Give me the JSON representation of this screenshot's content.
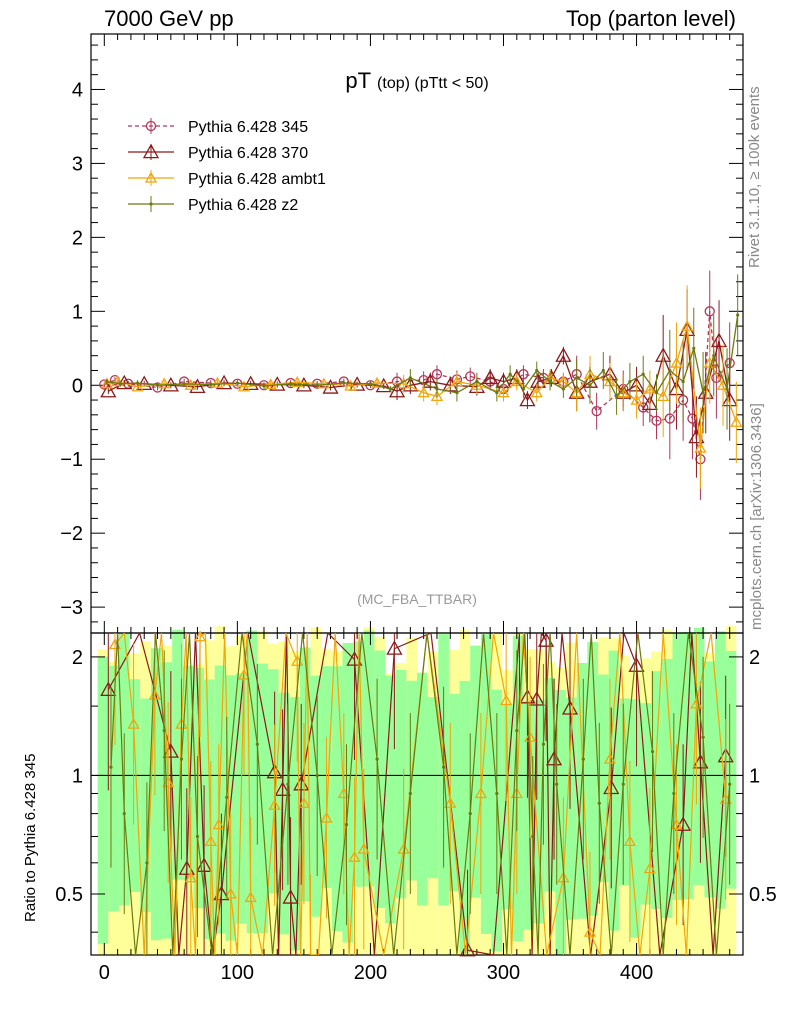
{
  "header": {
    "left": "7000 GeV pp",
    "right": "Top (parton level)"
  },
  "side_labels": {
    "rivet": "Rivet 3.1.10, ≥ 100k events",
    "mcplots": "mcplots.cern.ch [arXiv:1306.3436]"
  },
  "colors": {
    "pythia_345": "#b2365a",
    "pythia_370": "#8b1a1a",
    "pythia_ambt1": "#f2a50c",
    "pythia_z2": "#6b7a10",
    "band_outer": "#ffff99",
    "band_inner": "#99ff99"
  },
  "chart_data": [
    {
      "type": "line",
      "title": "pT (top) (pTtt < 50)",
      "title_main": "pT",
      "title_sub": "(top) (pTtt < 50)",
      "analysis": "(MC_FBA_TTBAR)",
      "xlim": [
        -10,
        480
      ],
      "ylim": [
        -3.35,
        4.75
      ],
      "x_ticks": [
        0,
        100,
        200,
        300,
        400
      ],
      "y_ticks": [
        "−3",
        "−2",
        "−1",
        "0",
        "1",
        "2",
        "3",
        "4"
      ],
      "y_tick_values": [
        -3,
        -2,
        -1,
        0,
        1,
        2,
        3,
        4
      ],
      "grid": false,
      "legend": "top-left",
      "series": [
        {
          "name": "Pythia 6.428 345",
          "color": "#b2365a",
          "marker": "circle",
          "dash": true,
          "points": [
            [
              0,
              0.01
            ],
            [
              8,
              0.07
            ],
            [
              18,
              0.02
            ],
            [
              40,
              -0.03
            ],
            [
              60,
              0.05
            ],
            [
              80,
              0.03
            ],
            [
              100,
              0.02
            ],
            [
              120,
              0.0
            ],
            [
              140,
              0.03
            ],
            [
              160,
              0.02
            ],
            [
              180,
              0.05
            ],
            [
              200,
              0.0
            ],
            [
              220,
              0.05
            ],
            [
              240,
              0.07
            ],
            [
              250,
              0.15
            ],
            [
              265,
              0.08
            ],
            [
              275,
              0.12
            ],
            [
              290,
              0.05
            ],
            [
              300,
              -0.05
            ],
            [
              315,
              0.15
            ],
            [
              330,
              0.1
            ],
            [
              345,
              0.05
            ],
            [
              355,
              0.15
            ],
            [
              370,
              -0.35
            ],
            [
              390,
              -0.05
            ],
            [
              405,
              -0.3
            ],
            [
              415,
              -0.48
            ],
            [
              425,
              -0.45
            ],
            [
              435,
              -0.2
            ],
            [
              442,
              -0.45
            ],
            [
              448,
              -1.0
            ],
            [
              455,
              1.0
            ],
            [
              460,
              0.1
            ],
            [
              470,
              0.3
            ]
          ]
        },
        {
          "name": "Pythia 6.428 370",
          "color": "#8b1a1a",
          "marker": "triangle",
          "dash": false,
          "points": [
            [
              3,
              -0.08
            ],
            [
              15,
              0.03
            ],
            [
              30,
              0.02
            ],
            [
              50,
              0.0
            ],
            [
              70,
              -0.02
            ],
            [
              90,
              0.03
            ],
            [
              110,
              0.02
            ],
            [
              130,
              0.01
            ],
            [
              150,
              0.0
            ],
            [
              170,
              -0.03
            ],
            [
              190,
              0.01
            ],
            [
              210,
              -0.01
            ],
            [
              220,
              -0.08
            ],
            [
              230,
              0.0
            ],
            [
              245,
              0.05
            ],
            [
              260,
              0.0
            ],
            [
              280,
              -0.02
            ],
            [
              290,
              0.1
            ],
            [
              300,
              0.05
            ],
            [
              310,
              0.1
            ],
            [
              318,
              -0.2
            ],
            [
              326,
              0.05
            ],
            [
              336,
              0.1
            ],
            [
              345,
              0.4
            ],
            [
              355,
              -0.1
            ],
            [
              365,
              0.05
            ],
            [
              380,
              0.15
            ],
            [
              390,
              -0.1
            ],
            [
              400,
              0.0
            ],
            [
              410,
              -0.25
            ],
            [
              420,
              0.4
            ],
            [
              430,
              -0.05
            ],
            [
              438,
              0.75
            ],
            [
              445,
              -0.7
            ],
            [
              452,
              -0.1
            ],
            [
              462,
              0.6
            ],
            [
              470,
              -0.2
            ]
          ]
        },
        {
          "name": "Pythia 6.428 ambt1",
          "color": "#f2a50c",
          "marker": "triangle",
          "dash": false,
          "points": [
            [
              2,
              0.02
            ],
            [
              10,
              0.05
            ],
            [
              25,
              -0.02
            ],
            [
              45,
              0.02
            ],
            [
              65,
              0.0
            ],
            [
              85,
              0.03
            ],
            [
              105,
              -0.02
            ],
            [
              125,
              0.01
            ],
            [
              145,
              0.04
            ],
            [
              165,
              0.02
            ],
            [
              185,
              -0.01
            ],
            [
              205,
              0.03
            ],
            [
              225,
              0.02
            ],
            [
              240,
              -0.1
            ],
            [
              250,
              -0.15
            ],
            [
              265,
              0.05
            ],
            [
              280,
              0.0
            ],
            [
              300,
              -0.1
            ],
            [
              310,
              0.05
            ],
            [
              325,
              -0.1
            ],
            [
              335,
              0.1
            ],
            [
              345,
              0.05
            ],
            [
              355,
              -0.1
            ],
            [
              365,
              0.15
            ],
            [
              380,
              0.05
            ],
            [
              390,
              -0.1
            ],
            [
              400,
              -0.2
            ],
            [
              410,
              -0.05
            ],
            [
              420,
              -0.15
            ],
            [
              430,
              0.3
            ],
            [
              438,
              0.8
            ],
            [
              448,
              -0.85
            ],
            [
              455,
              0.3
            ],
            [
              465,
              0.0
            ],
            [
              475,
              -0.5
            ]
          ]
        },
        {
          "name": "Pythia 6.428 z2",
          "color": "#6b7a10",
          "marker": "dot",
          "dash": false,
          "points": [
            [
              2,
              0.05
            ],
            [
              12,
              0.02
            ],
            [
              25,
              0.03
            ],
            [
              40,
              0.0
            ],
            [
              60,
              0.02
            ],
            [
              80,
              0.01
            ],
            [
              100,
              0.03
            ],
            [
              120,
              -0.01
            ],
            [
              140,
              0.02
            ],
            [
              160,
              0.0
            ],
            [
              180,
              0.03
            ],
            [
              200,
              0.02
            ],
            [
              215,
              -0.05
            ],
            [
              230,
              0.1
            ],
            [
              250,
              -0.05
            ],
            [
              265,
              -0.1
            ],
            [
              280,
              0.05
            ],
            [
              295,
              -0.1
            ],
            [
              305,
              0.15
            ],
            [
              315,
              -0.05
            ],
            [
              325,
              0.2
            ],
            [
              335,
              0.05
            ],
            [
              345,
              -0.05
            ],
            [
              355,
              0.1
            ],
            [
              365,
              0.0
            ],
            [
              375,
              0.2
            ],
            [
              385,
              -0.15
            ],
            [
              395,
              0.05
            ],
            [
              405,
              0.15
            ],
            [
              415,
              -0.1
            ],
            [
              425,
              0.2
            ],
            [
              435,
              0.05
            ],
            [
              443,
              0.5
            ],
            [
              450,
              -0.1
            ],
            [
              458,
              0.4
            ],
            [
              468,
              -0.05
            ],
            [
              476,
              0.95
            ]
          ]
        }
      ]
    },
    {
      "type": "line",
      "title": "",
      "ylabel": "Ratio to Pythia 6.428 345",
      "xlim": [
        -10,
        480
      ],
      "ylim": [
        0.35,
        2.3
      ],
      "log_y": true,
      "x_ticks": [
        0,
        100,
        200,
        300,
        400
      ],
      "y_ticks": [
        "0.5",
        "1",
        "2"
      ],
      "y_tick_values": [
        0.5,
        1,
        2
      ],
      "reference_line": 1,
      "grid": false,
      "series": [
        {
          "name": "Pythia 6.428 370",
          "color": "#8b1a1a",
          "marker": "triangle",
          "points": [
            [
              3,
              1.65
            ],
            [
              50,
              1.15
            ],
            [
              62,
              0.58
            ],
            [
              75,
              0.59
            ],
            [
              88,
              0.5
            ],
            [
              128,
              1.02
            ],
            [
              134,
              0.92
            ],
            [
              140,
              0.49
            ],
            [
              148,
              0.95
            ],
            [
              188,
              1.97
            ],
            [
              218,
              2.1
            ],
            [
              273,
              0.36
            ],
            [
              312,
              2.3
            ],
            [
              318,
              1.58
            ],
            [
              325,
              1.56
            ],
            [
              332,
              2.2
            ],
            [
              338,
              1.1
            ],
            [
              350,
              1.48
            ],
            [
              381,
              0.93
            ],
            [
              400,
              1.9
            ],
            [
              435,
              0.75
            ],
            [
              448,
              1.08
            ],
            [
              467,
              1.12
            ]
          ]
        },
        {
          "name": "Pythia 6.428 ambt1",
          "color": "#f2a50c",
          "marker": "triangle",
          "points": [
            [
              8,
              2.15
            ],
            [
              22,
              1.35
            ],
            [
              38,
              1.6
            ],
            [
              48,
              0.96
            ],
            [
              58,
              1.35
            ],
            [
              65,
              0.55
            ],
            [
              72,
              2.25
            ],
            [
              80,
              0.68
            ],
            [
              86,
              0.75
            ],
            [
              95,
              0.5
            ],
            [
              105,
              1.8
            ],
            [
              110,
              0.49
            ],
            [
              128,
              0.84
            ],
            [
              145,
              1.95
            ],
            [
              150,
              0.85
            ],
            [
              155,
              0.35
            ],
            [
              167,
              0.78
            ],
            [
              180,
              0.9
            ],
            [
              188,
              0.62
            ],
            [
              195,
              0.65
            ],
            [
              225,
              0.65
            ],
            [
              260,
              0.85
            ],
            [
              283,
              0.9
            ],
            [
              302,
              1.55
            ],
            [
              310,
              0.9
            ],
            [
              320,
              1.25
            ],
            [
              345,
              0.55
            ],
            [
              365,
              0.4
            ],
            [
              380,
              1.1
            ],
            [
              395,
              0.68
            ],
            [
              410,
              0.58
            ],
            [
              430,
              0.75
            ],
            [
              445,
              1.52
            ],
            [
              467,
              0.87
            ]
          ]
        },
        {
          "name": "Pythia 6.428 z2",
          "color": "#6b7a10",
          "marker": "dot",
          "points": [
            [
              5,
              1.05
            ],
            [
              15,
              0.8
            ],
            [
              32,
              0.6
            ],
            [
              45,
              1.3
            ],
            [
              58,
              1.1
            ],
            [
              70,
              0.7
            ],
            [
              92,
              0.88
            ],
            [
              115,
              1.2
            ],
            [
              138,
              0.95
            ],
            [
              160,
              1.0
            ],
            [
              182,
              0.75
            ],
            [
              205,
              1.1
            ],
            [
              230,
              0.9
            ],
            [
              255,
              1.05
            ],
            [
              275,
              0.8
            ],
            [
              295,
              0.9
            ],
            [
              310,
              1.3
            ],
            [
              322,
              0.7
            ],
            [
              330,
              1.2
            ],
            [
              340,
              0.95
            ],
            [
              360,
              1.1
            ],
            [
              372,
              0.85
            ],
            [
              390,
              0.95
            ],
            [
              412,
              1.15
            ],
            [
              428,
              0.9
            ],
            [
              450,
              1.25
            ],
            [
              470,
              0.95
            ]
          ]
        }
      ]
    }
  ]
}
